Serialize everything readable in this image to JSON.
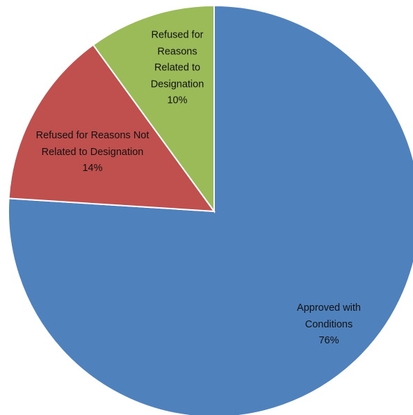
{
  "chart_data": {
    "type": "pie",
    "categories": [
      "Approved with Conditions",
      "Refused for Reasons Not Related to Designation",
      "Refused for Reasons Related to Designation"
    ],
    "values": [
      76,
      14,
      10
    ],
    "value_labels": [
      "76%",
      "14%",
      "10%"
    ],
    "colors": [
      "#4f81bd",
      "#c0504d",
      "#9bbb59"
    ]
  }
}
